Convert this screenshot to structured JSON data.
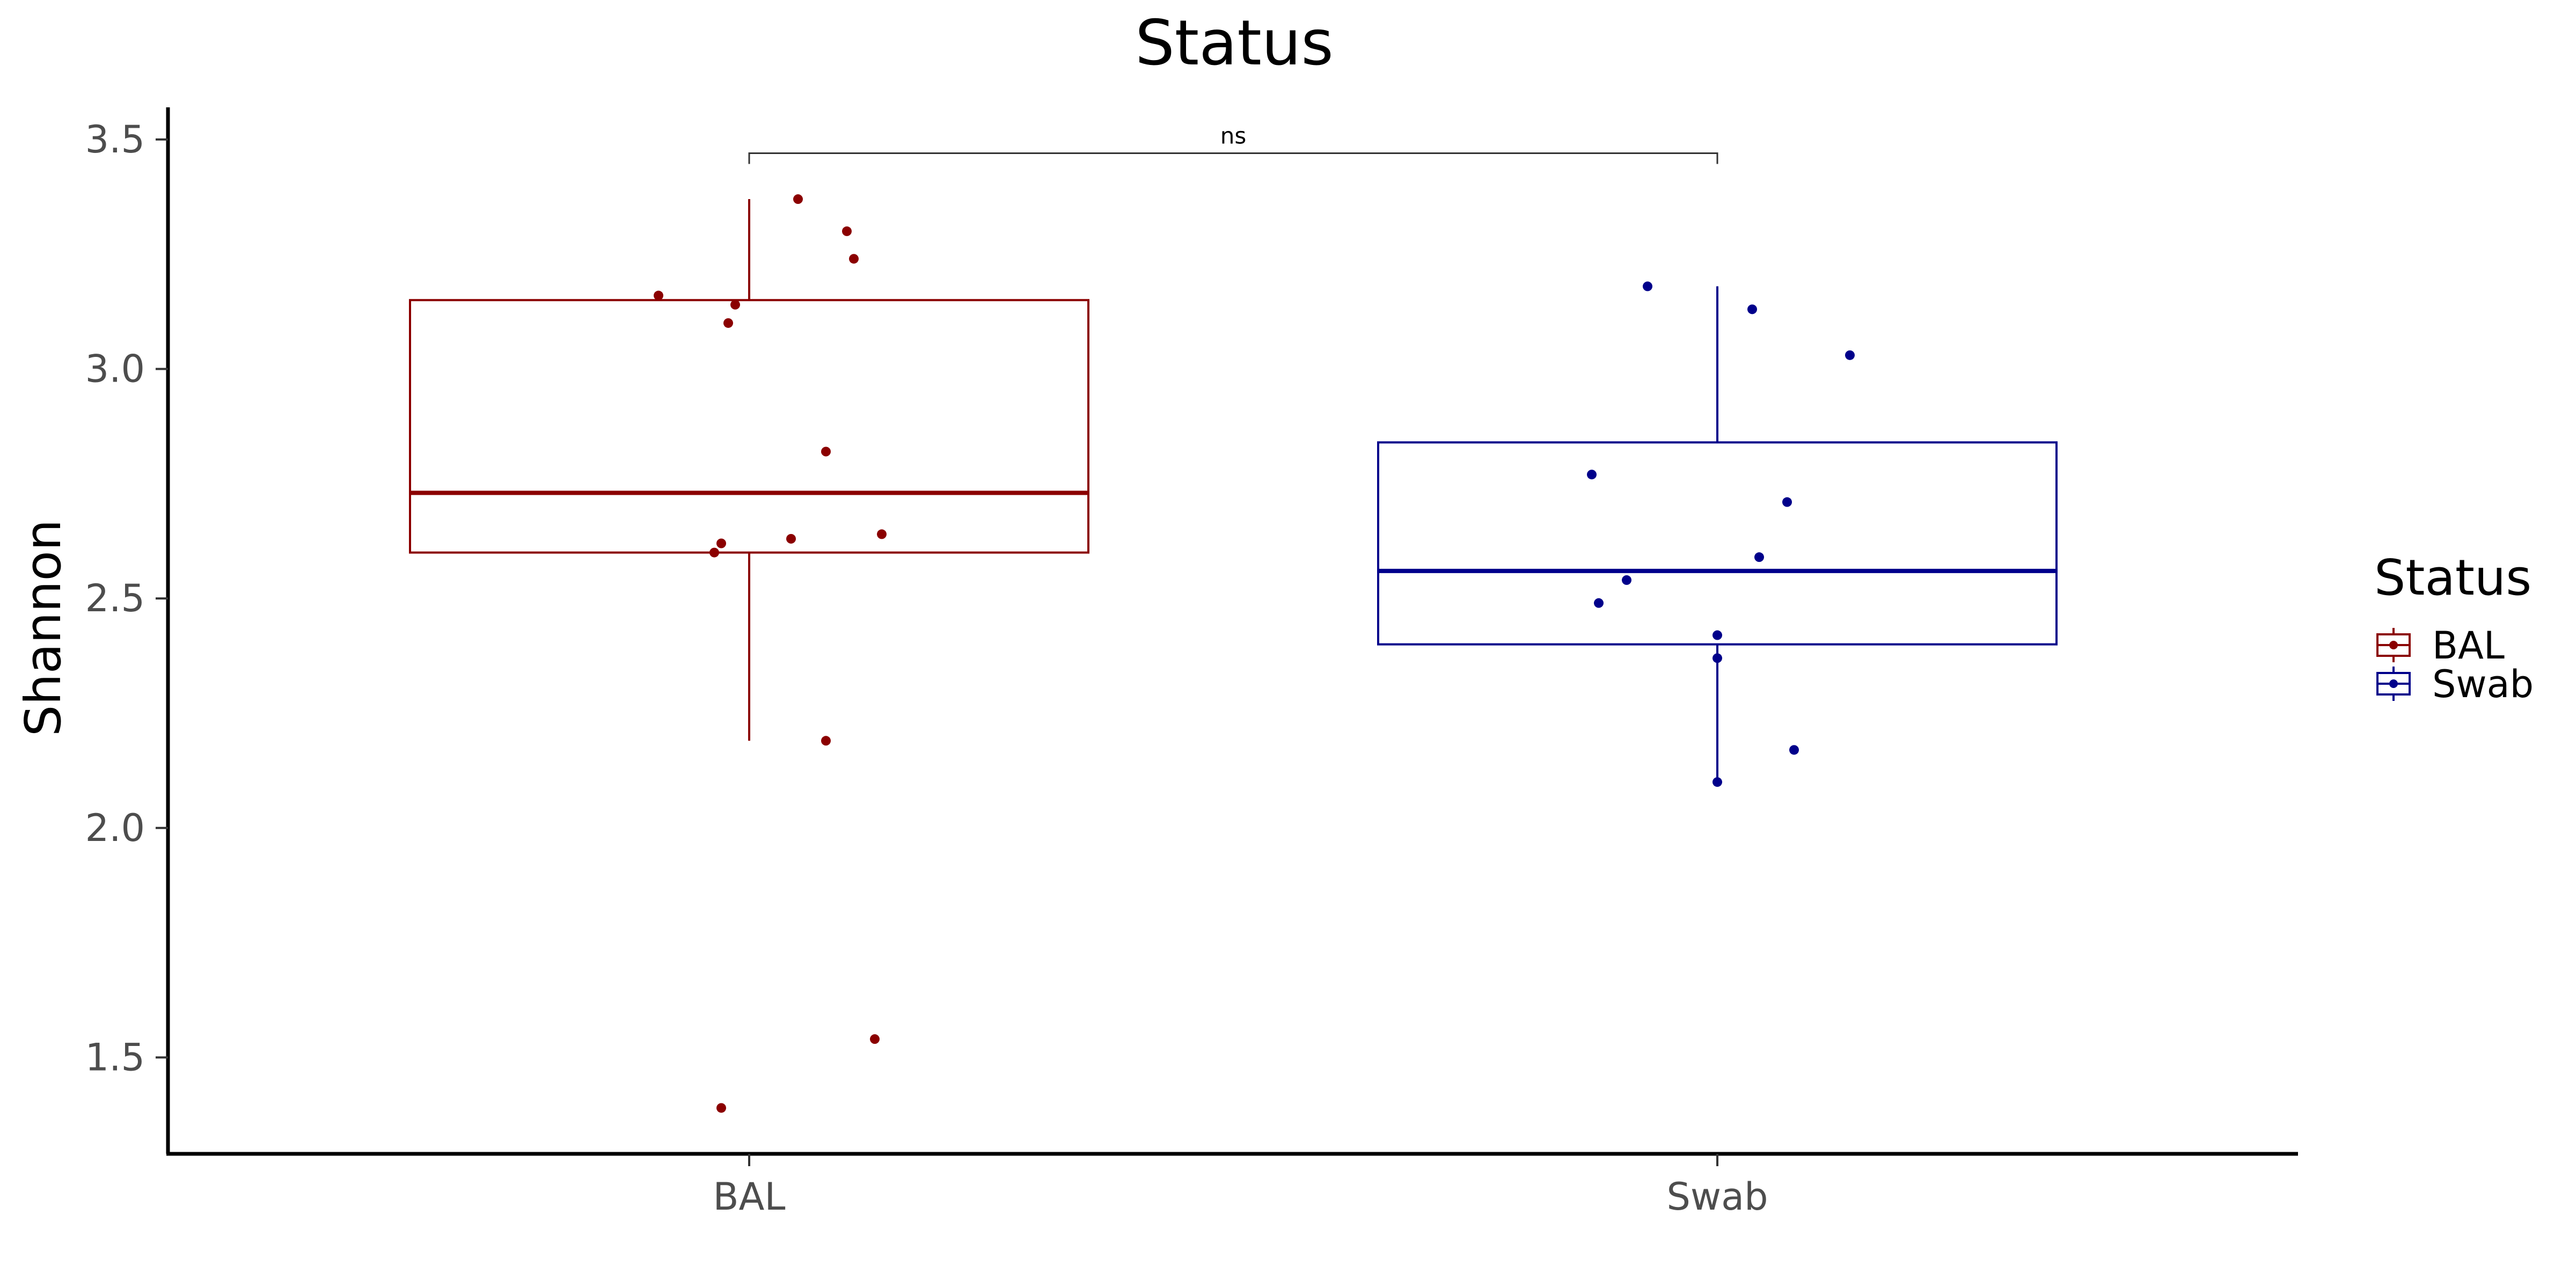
{
  "chart_data": {
    "type": "box",
    "title": "Status",
    "xlabel": "",
    "ylabel": "Shannon",
    "ylim": [
      1.29,
      3.57
    ],
    "yticks": [
      "1.5",
      "2.0",
      "2.5",
      "3.0",
      "3.5"
    ],
    "categories": [
      "BAL",
      "Swab"
    ],
    "legend": {
      "title": "Status",
      "position": "right",
      "entries": [
        "BAL",
        "Swab"
      ]
    },
    "colors": {
      "BAL": "#8b0000",
      "Swab": "#00008b"
    },
    "grid": false,
    "series": [
      {
        "name": "BAL",
        "box": {
          "whisker_low": 2.19,
          "q1": 2.6,
          "median": 2.73,
          "q3": 3.15,
          "whisker_high": 3.37
        },
        "points": [
          {
            "x": -0.13,
            "y": 3.16
          },
          {
            "x": -0.02,
            "y": 3.14
          },
          {
            "x": -0.03,
            "y": 3.1
          },
          {
            "x": 0.07,
            "y": 3.37
          },
          {
            "x": 0.14,
            "y": 3.3
          },
          {
            "x": 0.15,
            "y": 3.24
          },
          {
            "x": 0.11,
            "y": 2.82
          },
          {
            "x": -0.04,
            "y": 2.62
          },
          {
            "x": -0.05,
            "y": 2.6
          },
          {
            "x": 0.06,
            "y": 2.63
          },
          {
            "x": 0.19,
            "y": 2.64
          },
          {
            "x": 0.11,
            "y": 2.19
          },
          {
            "x": 0.18,
            "y": 1.54
          },
          {
            "x": -0.04,
            "y": 1.39
          }
        ]
      },
      {
        "name": "Swab",
        "box": {
          "whisker_low": 2.1,
          "q1": 2.4,
          "median": 2.56,
          "q3": 2.84,
          "whisker_high": 3.18
        },
        "points": [
          {
            "x": -0.1,
            "y": 3.18
          },
          {
            "x": 0.05,
            "y": 3.13
          },
          {
            "x": 0.19,
            "y": 3.03
          },
          {
            "x": -0.18,
            "y": 2.77
          },
          {
            "x": 0.1,
            "y": 2.71
          },
          {
            "x": 0.06,
            "y": 2.59
          },
          {
            "x": -0.13,
            "y": 2.54
          },
          {
            "x": -0.17,
            "y": 2.49
          },
          {
            "x": 0.0,
            "y": 2.42
          },
          {
            "x": 0.0,
            "y": 2.37
          },
          {
            "x": 0.11,
            "y": 2.17
          },
          {
            "x": 0.0,
            "y": 2.1
          }
        ]
      }
    ],
    "comparison": {
      "groups": [
        "BAL",
        "Swab"
      ],
      "label": "ns",
      "y": 3.47
    }
  }
}
